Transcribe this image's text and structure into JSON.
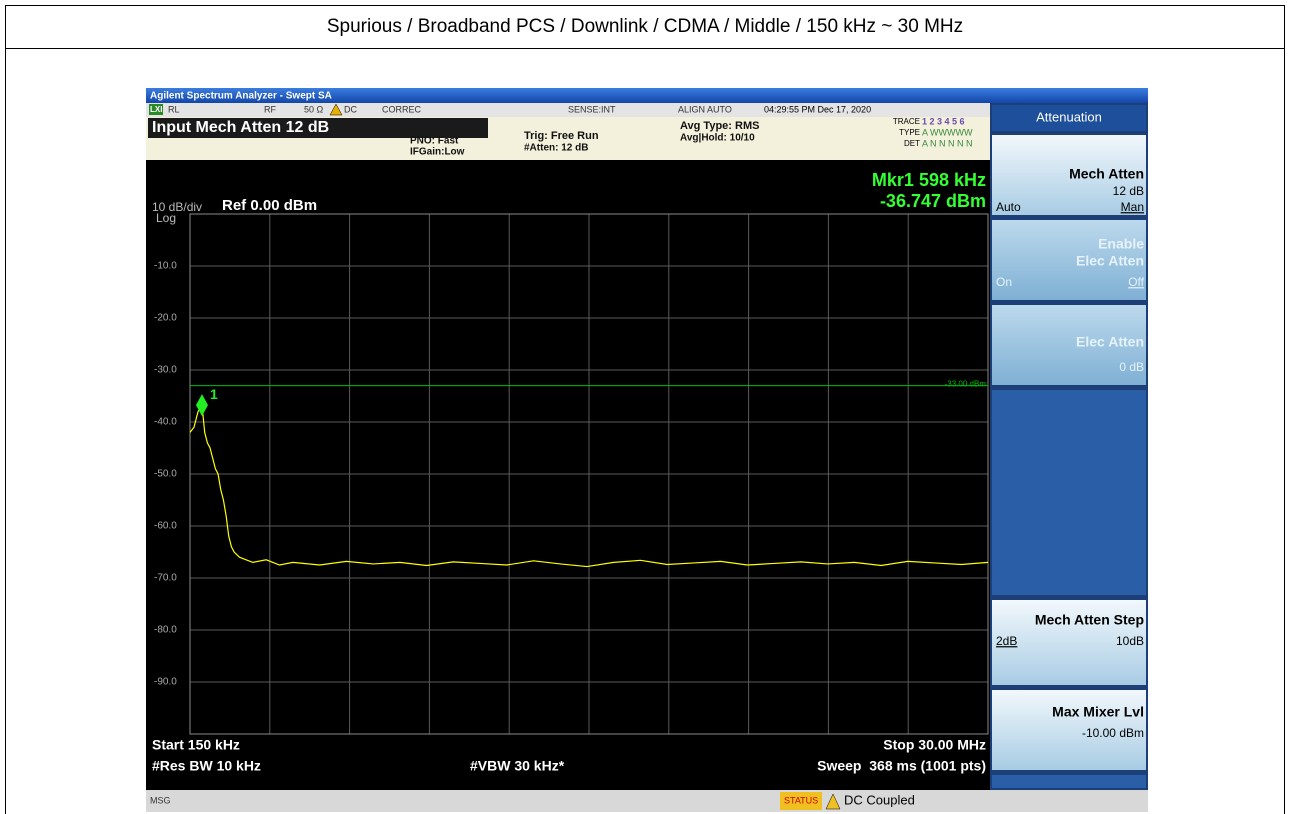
{
  "header": {
    "title": "Spurious / Broadband PCS / Downlink / CDMA / Middle / 150 kHz ~ 30 MHz"
  },
  "window": {
    "title": "Agilent Spectrum Analyzer - Swept SA"
  },
  "status_row": {
    "lxi": "LXI",
    "rl": "RL",
    "rf": "RF",
    "impedance": "50 Ω",
    "dc": "DC",
    "correc": "CORREC",
    "sense": "SENSE:INT",
    "align": "ALIGN AUTO",
    "time": "04:29:55 PM Dec 17, 2020"
  },
  "info": {
    "banner": "Input Mech Atten 12 dB",
    "pno": "PNO: Fast",
    "ifgain": "IFGain:Low",
    "trig": "Trig: Free Run",
    "atten": "#Atten: 12 dB",
    "avg_type": "Avg Type: RMS",
    "avg_hold": "Avg|Hold: 10/10",
    "trace_label": "TRACE",
    "trace_nums": "1 2 3 4 5 6",
    "type_label": "TYPE",
    "type_value": "A WWWWW",
    "det_label": "DET",
    "det_value": "A N N N N N"
  },
  "display": {
    "type": "line",
    "scale": "10 dB/div",
    "scale_type": "Log",
    "ref": "Ref 0.00 dBm",
    "marker_freq": "Mkr1 598 kHz",
    "marker_level": "-36.747 dBm",
    "start": "Start 150 kHz",
    "stop": "Stop 30.00 MHz",
    "rbw": "#Res BW 10 kHz",
    "vbw": "#VBW 30 kHz*",
    "sweep": "Sweep  368 ms (1001 pts)",
    "xlim": [
      0.15,
      30
    ],
    "ylim": [
      -100,
      0
    ],
    "yticks": [
      {
        "value": -10,
        "label": "-10.0"
      },
      {
        "value": -20,
        "label": "-20.0"
      },
      {
        "value": -30,
        "label": "-30.0"
      },
      {
        "value": -40,
        "label": "-40.0"
      },
      {
        "value": -50,
        "label": "-50.0"
      },
      {
        "value": -60,
        "label": "-60.0"
      },
      {
        "value": -70,
        "label": "-70.0"
      },
      {
        "value": -80,
        "label": "-80.0"
      },
      {
        "value": -90,
        "label": "-90.0"
      }
    ],
    "grid": true,
    "limit_line": {
      "value": -33,
      "label": "-33.00 dBm",
      "color": "#00c000"
    },
    "marker": {
      "x": 0.598,
      "value": -36.747,
      "label": "1",
      "color": "#22ee22"
    },
    "trace": {
      "color": "#ffff00",
      "x": [
        0.15,
        0.3,
        0.45,
        0.598,
        0.7,
        0.8,
        0.9,
        1.0,
        1.1,
        1.2,
        1.3,
        1.4,
        1.5,
        1.6,
        1.7,
        1.8,
        2.0,
        2.5,
        3,
        3.5,
        4,
        5,
        6,
        7,
        8,
        9,
        10,
        11,
        12,
        13,
        14,
        15,
        16,
        17,
        18,
        19,
        20,
        21,
        22,
        23,
        24,
        25,
        26,
        27,
        28,
        29,
        30
      ],
      "values": [
        -42,
        -41,
        -38,
        -36.7,
        -42,
        -44,
        -45,
        -47,
        -49,
        -50,
        -53,
        -55,
        -58,
        -62,
        -64,
        -65,
        -66,
        -67,
        -66.5,
        -67.5,
        -67,
        -67.5,
        -66.8,
        -67.3,
        -67,
        -67.6,
        -66.9,
        -67.2,
        -67.5,
        -66.7,
        -67.3,
        -67.8,
        -67,
        -66.6,
        -67.4,
        -67.1,
        -66.8,
        -67.5,
        -67.2,
        -66.9,
        -67.3,
        -67,
        -67.6,
        -66.8,
        -67.1,
        -67.4,
        -67
      ]
    }
  },
  "softkeys": {
    "header": "Attenuation",
    "mech_atten": {
      "label": "Mech Atten",
      "value": "12 dB",
      "left": "Auto",
      "right": "Man"
    },
    "elec_enable": {
      "label1": "Enable",
      "label2": "Elec Atten",
      "left": "On",
      "right": "Off"
    },
    "elec_atten": {
      "label": "Elec Atten",
      "value": "0 dB"
    },
    "step": {
      "label": "Mech Atten Step",
      "left": "2dB",
      "right": "10dB"
    },
    "mixer": {
      "label": "Max Mixer Lvl",
      "value": "-10.00 dBm"
    }
  },
  "bottom": {
    "msg": "MSG",
    "status": "STATUS",
    "coupling": "DC Coupled"
  }
}
